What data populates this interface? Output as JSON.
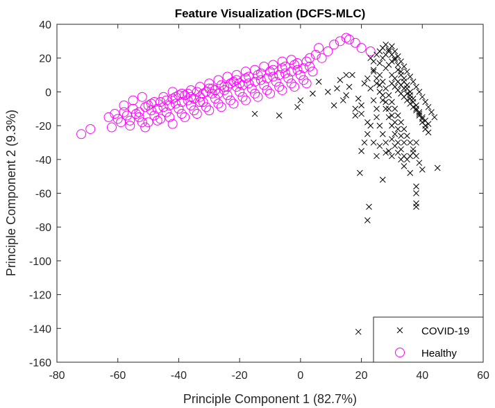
{
  "chart_data": {
    "type": "scatter",
    "title": "Feature Visualization (DCFS-MLC)",
    "xlabel": "Principle Component 1 (82.7%)",
    "ylabel": "Principle Component 2 (9.3%)",
    "xlim": [
      -80,
      60
    ],
    "ylim": [
      -160,
      40
    ],
    "xticks": [
      -80,
      -60,
      -40,
      -20,
      0,
      20,
      40,
      60
    ],
    "yticks": [
      -160,
      -140,
      -120,
      -100,
      -80,
      -60,
      -40,
      -20,
      0,
      20,
      40
    ],
    "grid": false,
    "legend_position": "bottom-right",
    "series": [
      {
        "name": "COVID-19",
        "marker": "x",
        "color": "#000000",
        "points": [
          [
            19,
            -142
          ],
          [
            22,
            -76
          ],
          [
            22.5,
            -68
          ],
          [
            19.5,
            -48
          ],
          [
            27,
            -52
          ],
          [
            38,
            -66
          ],
          [
            38,
            -68
          ],
          [
            38,
            -56
          ],
          [
            38,
            -60
          ],
          [
            45,
            -45
          ],
          [
            -15,
            -13
          ],
          [
            -7,
            -14
          ],
          [
            -1,
            -9
          ],
          [
            0,
            -5
          ],
          [
            4,
            -1
          ],
          [
            6,
            6
          ],
          [
            9,
            0
          ],
          [
            11,
            -8
          ],
          [
            13,
            7
          ],
          [
            14,
            -5
          ],
          [
            15,
            -2
          ],
          [
            16,
            3
          ],
          [
            17,
            10
          ],
          [
            18,
            -10
          ],
          [
            19,
            -4
          ],
          [
            20,
            -13
          ],
          [
            21,
            5
          ],
          [
            22,
            8
          ],
          [
            23,
            2
          ],
          [
            24,
            13
          ],
          [
            25,
            -15
          ],
          [
            26,
            17
          ],
          [
            27,
            20
          ],
          [
            28,
            22
          ],
          [
            29,
            25
          ],
          [
            30,
            27
          ],
          [
            31,
            24
          ],
          [
            32,
            21
          ],
          [
            33,
            18
          ],
          [
            34,
            15
          ],
          [
            35,
            12
          ],
          [
            36,
            9
          ],
          [
            37,
            6
          ],
          [
            38,
            3
          ],
          [
            39,
            0
          ],
          [
            40,
            -3
          ],
          [
            41,
            -6
          ],
          [
            42,
            -9
          ],
          [
            43,
            -12
          ],
          [
            44,
            -15
          ],
          [
            26,
            10
          ],
          [
            27,
            6
          ],
          [
            28,
            2
          ],
          [
            29,
            -2
          ],
          [
            30,
            -6
          ],
          [
            31,
            -10
          ],
          [
            32,
            -14
          ],
          [
            33,
            -18
          ],
          [
            34,
            -22
          ],
          [
            35,
            -26
          ],
          [
            36,
            -30
          ],
          [
            37,
            -34
          ],
          [
            38,
            -38
          ],
          [
            39,
            -42
          ],
          [
            40,
            -46
          ],
          [
            28,
            14
          ],
          [
            29,
            16
          ],
          [
            30,
            18
          ],
          [
            31,
            20
          ],
          [
            32,
            16
          ],
          [
            33,
            12
          ],
          [
            34,
            8
          ],
          [
            35,
            4
          ],
          [
            36,
            0
          ],
          [
            37,
            -4
          ],
          [
            38,
            -8
          ],
          [
            39,
            -12
          ],
          [
            40,
            -16
          ],
          [
            41,
            -20
          ],
          [
            42,
            -24
          ],
          [
            24,
            -5
          ],
          [
            25,
            -10
          ],
          [
            26,
            -20
          ],
          [
            27,
            -25
          ],
          [
            28,
            -30
          ],
          [
            29,
            -35
          ],
          [
            30,
            -28
          ],
          [
            31,
            -32
          ],
          [
            32,
            -36
          ],
          [
            33,
            -40
          ],
          [
            25,
            5
          ],
          [
            26,
            0
          ],
          [
            27,
            -5
          ],
          [
            28,
            -10
          ],
          [
            29,
            -15
          ],
          [
            30,
            -20
          ],
          [
            31,
            -25
          ],
          [
            32,
            -30
          ],
          [
            33,
            -34
          ],
          [
            34,
            -38
          ],
          [
            23,
            20
          ],
          [
            24,
            18
          ],
          [
            25,
            22
          ],
          [
            26,
            24
          ],
          [
            27,
            26
          ],
          [
            28,
            28
          ],
          [
            29,
            24
          ],
          [
            30,
            22
          ],
          [
            31,
            19
          ],
          [
            32,
            13
          ],
          [
            33,
            10
          ],
          [
            34,
            6
          ],
          [
            35,
            2
          ],
          [
            36,
            -2
          ],
          [
            37,
            -6
          ],
          [
            38,
            -10
          ],
          [
            39,
            -14
          ],
          [
            40,
            -18
          ],
          [
            41,
            -22
          ],
          [
            38,
            -30
          ],
          [
            35,
            -40
          ],
          [
            36,
            -38
          ],
          [
            37,
            -36
          ],
          [
            34,
            -30
          ],
          [
            33,
            -26
          ],
          [
            32,
            -22
          ],
          [
            31,
            -18
          ],
          [
            30,
            -14
          ],
          [
            29,
            -10
          ],
          [
            28,
            -6
          ],
          [
            27,
            -2
          ],
          [
            26,
            4
          ],
          [
            25,
            8
          ],
          [
            24,
            12
          ],
          [
            23,
            -20
          ],
          [
            22,
            -25
          ],
          [
            21,
            -30
          ],
          [
            20,
            -35
          ],
          [
            24,
            -30
          ],
          [
            25,
            -38
          ],
          [
            30,
            5
          ],
          [
            31,
            3
          ],
          [
            32,
            1
          ],
          [
            33,
            -1
          ],
          [
            34,
            -3
          ],
          [
            35,
            -5
          ],
          [
            36,
            -7
          ],
          [
            37,
            -9
          ],
          [
            38,
            -11
          ],
          [
            39,
            -13
          ],
          [
            40,
            -15
          ],
          [
            41,
            -17
          ],
          [
            42,
            -19
          ],
          [
            30,
            10
          ],
          [
            31,
            8
          ],
          [
            32,
            6
          ],
          [
            33,
            4
          ],
          [
            34,
            2
          ],
          [
            35,
            -1
          ],
          [
            36,
            -4
          ],
          [
            12,
            2
          ],
          [
            15,
            10
          ],
          [
            18,
            -14
          ],
          [
            20,
            -8
          ],
          [
            22,
            -18
          ],
          [
            26,
            -32
          ],
          [
            28,
            -36
          ],
          [
            30,
            -38
          ],
          [
            34,
            -44
          ],
          [
            36,
            -48
          ]
        ]
      },
      {
        "name": "Healthy",
        "marker": "o",
        "color": "#ff00ff",
        "points": [
          [
            -72,
            -25
          ],
          [
            -69,
            -22
          ],
          [
            -62,
            -21
          ],
          [
            -63,
            -15
          ],
          [
            -61,
            -13
          ],
          [
            -60,
            -16
          ],
          [
            -59,
            -18
          ],
          [
            -58,
            -12
          ],
          [
            -57,
            -14
          ],
          [
            -56,
            -17
          ],
          [
            -55,
            -10
          ],
          [
            -54,
            -13
          ],
          [
            -53,
            -15
          ],
          [
            -52,
            -18
          ],
          [
            -51,
            -21
          ],
          [
            -50,
            -8
          ],
          [
            -49,
            -11
          ],
          [
            -48,
            -14
          ],
          [
            -47,
            -17
          ],
          [
            -46,
            -6
          ],
          [
            -45,
            -9
          ],
          [
            -44,
            -12
          ],
          [
            -43,
            -15
          ],
          [
            -42,
            -4
          ],
          [
            -41,
            -7
          ],
          [
            -40,
            -10
          ],
          [
            -39,
            -13
          ],
          [
            -38,
            -2
          ],
          [
            -37,
            -5
          ],
          [
            -36,
            -8
          ],
          [
            -35,
            -11
          ],
          [
            -34,
            0
          ],
          [
            -33,
            -3
          ],
          [
            -32,
            -6
          ],
          [
            -31,
            -9
          ],
          [
            -30,
            2
          ],
          [
            -29,
            -1
          ],
          [
            -28,
            -4
          ],
          [
            -27,
            -7
          ],
          [
            -26,
            4
          ],
          [
            -25,
            1
          ],
          [
            -24,
            -2
          ],
          [
            -23,
            -5
          ],
          [
            -22,
            6
          ],
          [
            -21,
            3
          ],
          [
            -20,
            0
          ],
          [
            -19,
            -3
          ],
          [
            -18,
            8
          ],
          [
            -17,
            5
          ],
          [
            -16,
            2
          ],
          [
            -15,
            -1
          ],
          [
            -14,
            10
          ],
          [
            -13,
            7
          ],
          [
            -12,
            4
          ],
          [
            -11,
            1
          ],
          [
            -10,
            12
          ],
          [
            -9,
            9
          ],
          [
            -8,
            6
          ],
          [
            -7,
            3
          ],
          [
            -6,
            14
          ],
          [
            -5,
            11
          ],
          [
            -4,
            8
          ],
          [
            -3,
            5
          ],
          [
            -2,
            16
          ],
          [
            -1,
            13
          ],
          [
            0,
            10
          ],
          [
            1,
            7
          ],
          [
            2,
            18
          ],
          [
            3,
            15
          ],
          [
            4,
            12
          ],
          [
            5,
            22
          ],
          [
            6,
            26
          ],
          [
            7,
            20
          ],
          [
            9,
            24
          ],
          [
            11,
            28
          ],
          [
            13,
            30
          ],
          [
            15,
            32
          ],
          [
            16,
            31
          ],
          [
            18,
            29
          ],
          [
            20,
            26
          ],
          [
            23,
            24
          ],
          [
            -58,
            -8
          ],
          [
            -55,
            -5
          ],
          [
            -52,
            -3
          ],
          [
            -48,
            -6
          ],
          [
            -45,
            -3
          ],
          [
            -42,
            0
          ],
          [
            -39,
            -1
          ],
          [
            -36,
            1
          ],
          [
            -33,
            3
          ],
          [
            -30,
            5
          ],
          [
            -27,
            7
          ],
          [
            -24,
            9
          ],
          [
            -21,
            10
          ],
          [
            -18,
            12
          ],
          [
            -15,
            13
          ],
          [
            -12,
            15
          ],
          [
            -9,
            16
          ],
          [
            -6,
            18
          ],
          [
            -3,
            19
          ],
          [
            -56,
            -20
          ],
          [
            -50,
            -18
          ],
          [
            -46,
            -16
          ],
          [
            -42,
            -19
          ],
          [
            -38,
            -15
          ],
          [
            -34,
            -13
          ],
          [
            -30,
            -11
          ],
          [
            -26,
            -9
          ],
          [
            -22,
            -7
          ],
          [
            -18,
            -5
          ],
          [
            -14,
            -3
          ],
          [
            -10,
            -1
          ],
          [
            -6,
            1
          ],
          [
            -2,
            3
          ],
          [
            2,
            5
          ],
          [
            -40,
            -2
          ],
          [
            -37,
            -1
          ],
          [
            -35,
            -4
          ],
          [
            -33,
            -6
          ],
          [
            -31,
            0
          ],
          [
            -29,
            2
          ],
          [
            -27,
            -1
          ],
          [
            -25,
            3
          ],
          [
            -23,
            5
          ],
          [
            -21,
            7
          ],
          [
            -19,
            4
          ],
          [
            -17,
            9
          ],
          [
            -15,
            6
          ],
          [
            -13,
            11
          ],
          [
            -11,
            8
          ],
          [
            -9,
            13
          ],
          [
            -7,
            10
          ],
          [
            -5,
            15
          ],
          [
            -3,
            12
          ],
          [
            -1,
            17
          ],
          [
            1,
            14
          ],
          [
            3,
            20
          ],
          [
            -53,
            -12
          ],
          [
            -51,
            -9
          ],
          [
            -49,
            -7
          ],
          [
            -47,
            -10
          ],
          [
            -44,
            -5
          ],
          [
            -43,
            -8
          ],
          [
            -41,
            -3
          ],
          [
            -39,
            -6
          ],
          [
            -36,
            -3
          ],
          [
            -32,
            -1
          ],
          [
            -28,
            1
          ],
          [
            -24,
            3
          ],
          [
            -20,
            5
          ]
        ]
      }
    ]
  }
}
